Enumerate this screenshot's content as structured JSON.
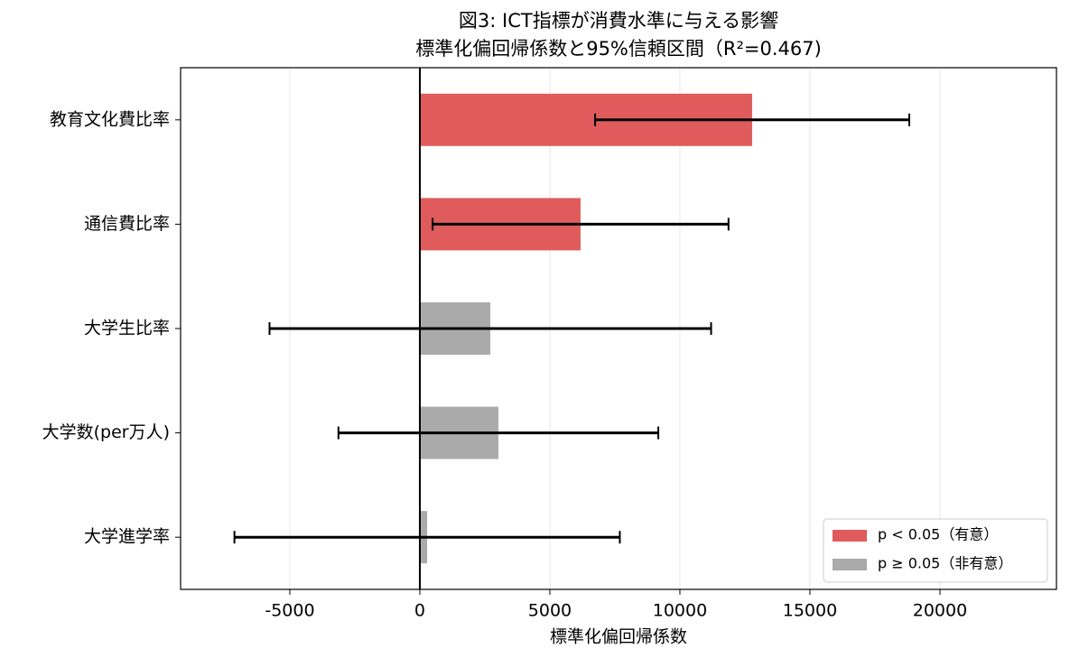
{
  "chart_data": {
    "type": "barh",
    "title": [
      "図3: ICT指標が消費水準に与える影響",
      "標準化偏回帰係数と95%信頼区間（R²=0.467)"
    ],
    "categories": [
      "教育文化費比率",
      "通信費比率",
      "大学生比率",
      "大学数(per万人)",
      "大学進学率"
    ],
    "values": [
      12780,
      6180,
      2710,
      3020,
      280
    ],
    "errors": [
      6040,
      5690,
      8490,
      6150,
      7410
    ],
    "colors": [
      "#e05c5c",
      "#e05c5c",
      "#aaaaaa",
      "#aaaaaa",
      "#aaaaaa"
    ],
    "xlim": [
      -9200,
      24480
    ],
    "xticks": [
      -5000,
      0,
      5000,
      10000,
      15000,
      20000
    ],
    "xlabel": "標準化偏回帰係数",
    "grid": true,
    "zero_line": true,
    "legend_position": "lower-right",
    "legend": [
      {
        "label": "p < 0.05（有意）",
        "color": "#e05c5c"
      },
      {
        "label": "p ≥ 0.05（非有意）",
        "color": "#aaaaaa"
      }
    ]
  }
}
